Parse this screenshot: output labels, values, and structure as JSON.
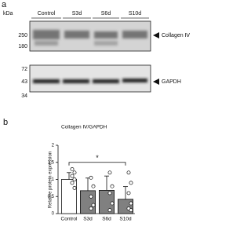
{
  "panel_a": {
    "label": "a",
    "unit": "kDa",
    "lanes": [
      "Control",
      "S3d",
      "S6d",
      "S10d"
    ],
    "blot1": {
      "markers": [
        "250",
        "180"
      ],
      "target": "Collagen Ⅳ"
    },
    "blot2": {
      "markers": [
        "72",
        "43",
        "34"
      ],
      "target": "GAPDH"
    }
  },
  "chart_data": {
    "type": "bar",
    "panel_label": "b",
    "title": "Collagen Ⅳ/GAPDH",
    "y_label": "Relative protein expression",
    "categories": [
      "Control",
      "S3d",
      "S6d",
      "S10d"
    ],
    "values": [
      1.0,
      0.67,
      0.68,
      0.42
    ],
    "errors": [
      0.2,
      0.37,
      0.42,
      0.37
    ],
    "colors": [
      "#ffffff",
      "#808080",
      "#808080",
      "#808080"
    ],
    "points": [
      [
        1.3,
        1.2,
        1.1,
        1.0,
        0.9,
        0.75
      ],
      [
        1.05,
        0.8,
        0.5,
        0.25,
        0.15
      ],
      [
        1.2,
        0.8,
        0.6,
        0.3,
        0.1
      ],
      [
        1.2,
        0.9,
        0.6,
        0.3,
        0.15,
        0.1
      ]
    ],
    "ylim": [
      0,
      2
    ],
    "yticks": [
      0,
      0.5,
      1,
      1.5,
      2
    ],
    "significance": {
      "from": 0,
      "to": 3,
      "level": 1.5,
      "label": "*"
    }
  }
}
